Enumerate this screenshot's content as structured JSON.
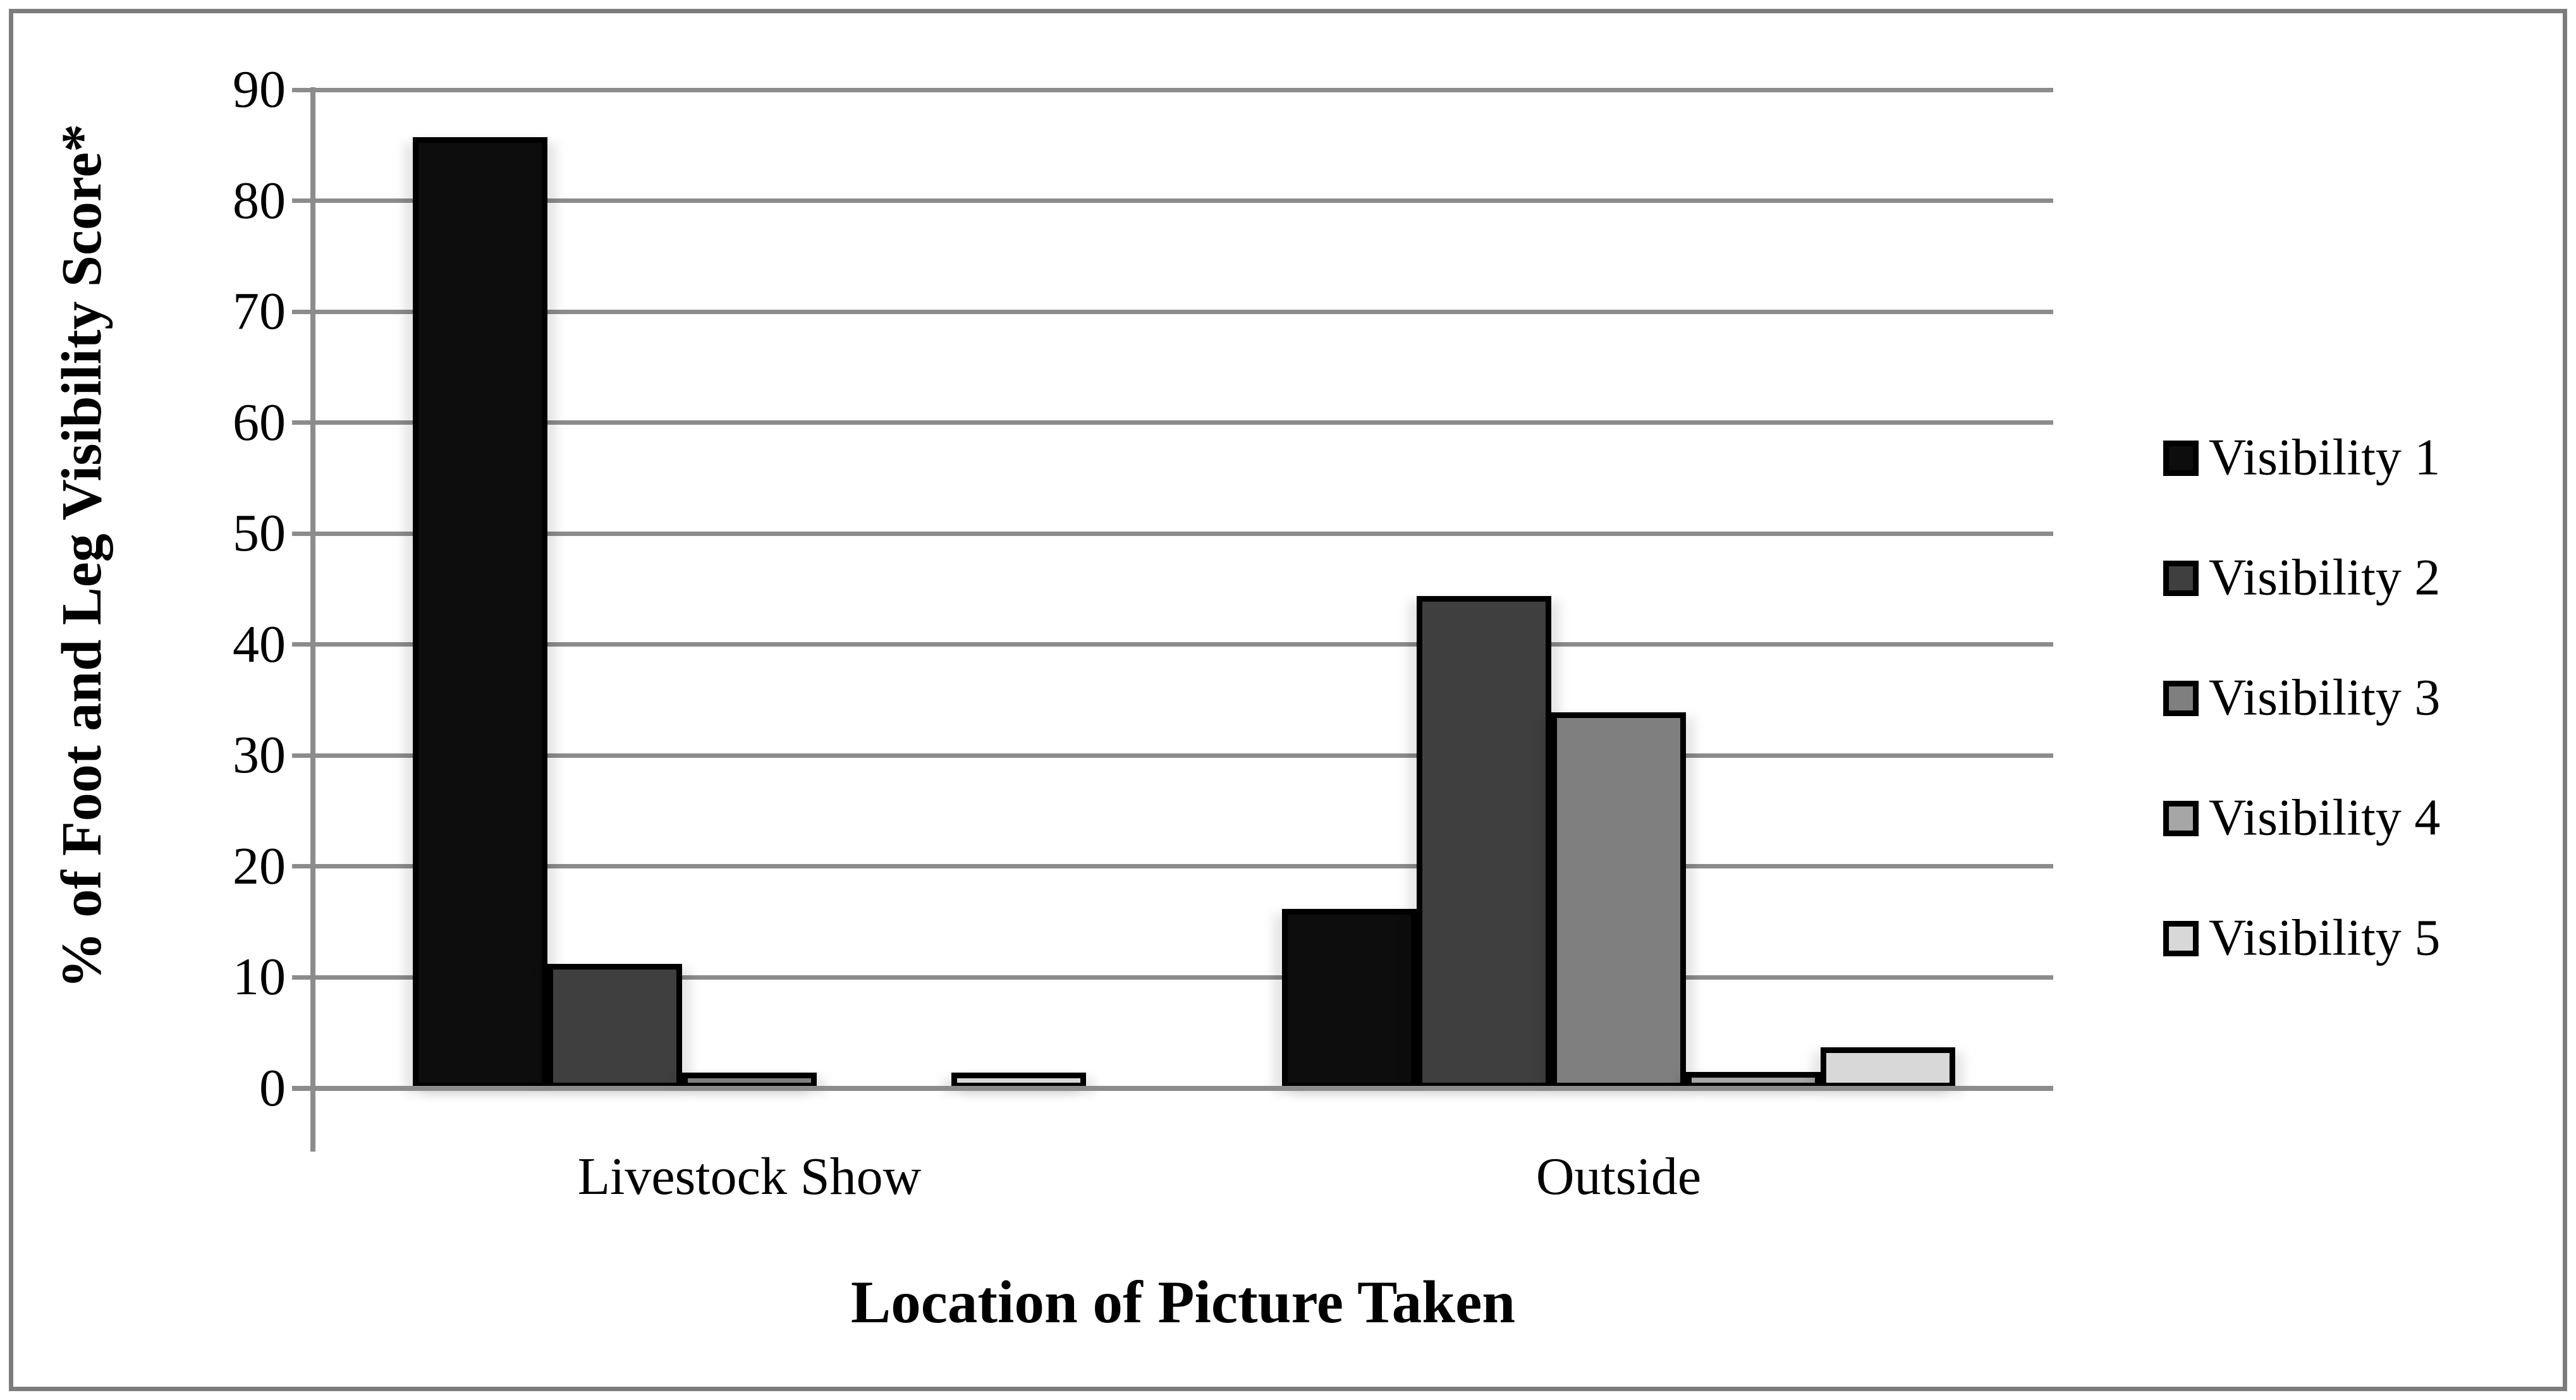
{
  "figure": {
    "background_color": "#ffffff",
    "frame_border_color": "#7c7c7c"
  },
  "chart_data": {
    "type": "bar",
    "title": "",
    "categories": [
      "Livestock Show",
      "Outside"
    ],
    "series": [
      {
        "name": "Visibility 1",
        "color": "#0d0d0d",
        "values": [
          85.7,
          16.2
        ]
      },
      {
        "name": "Visibility 2",
        "color": "#3f3f3f",
        "values": [
          11.2,
          44.4
        ]
      },
      {
        "name": "Visibility 3",
        "color": "#7f7f7f",
        "values": [
          1.4,
          33.9
        ]
      },
      {
        "name": "Visibility 4",
        "color": "#a6a6a6",
        "values": [
          0,
          1.5
        ]
      },
      {
        "name": "Visibility 5",
        "color": "#d8d8d8",
        "values": [
          1.4,
          3.7
        ]
      }
    ],
    "xlabel": "Location of Picture Taken",
    "ylabel": "% of Foot and Leg Visibility Score*",
    "ylim": [
      0,
      90
    ],
    "yticks": [
      0,
      10,
      20,
      30,
      40,
      50,
      60,
      70,
      80,
      90
    ],
    "grid": true,
    "legend_position": "right",
    "bar_border_color": "#000000",
    "gridline_color": "#8c8c8c",
    "axis_color": "#8c8c8c",
    "text_color": "#000000"
  }
}
